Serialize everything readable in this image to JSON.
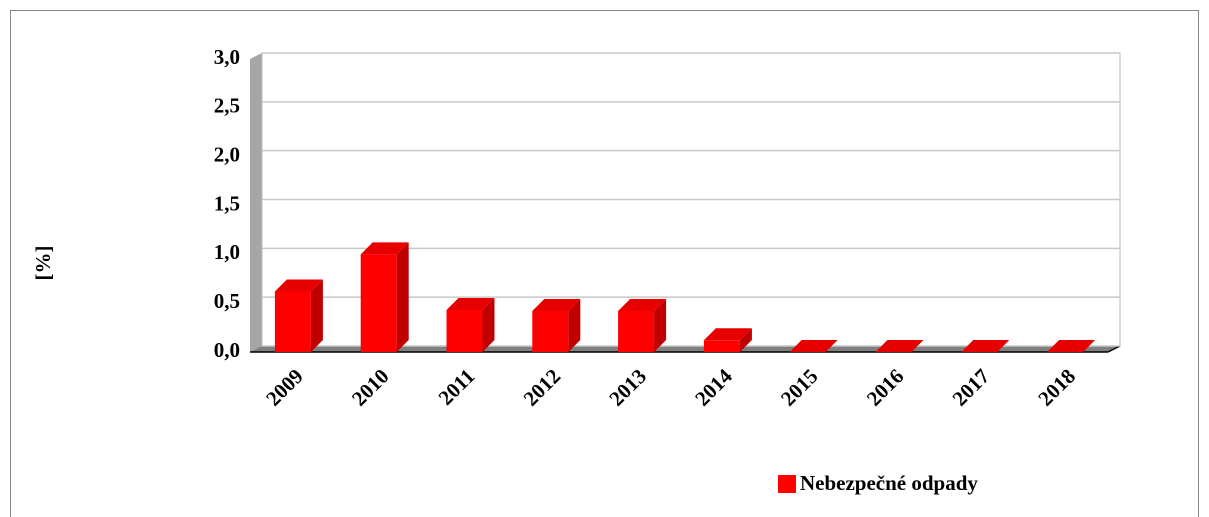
{
  "chart_data": {
    "type": "bar",
    "y_axis_label": "[%]",
    "categories": [
      "2009",
      "2010",
      "2011",
      "2012",
      "2013",
      "2014",
      "2015",
      "2016",
      "2017",
      "2018"
    ],
    "series": [
      {
        "name": "Nebezpečné odpady",
        "color": "#ff0000",
        "values": [
          0.62,
          1.0,
          0.43,
          0.42,
          0.42,
          0.12,
          0,
          0,
          0,
          0
        ]
      }
    ],
    "ylim": [
      0,
      3
    ],
    "yticks": [
      {
        "value": 0,
        "label": "0,0"
      },
      {
        "value": 0.5,
        "label": "0,5"
      },
      {
        "value": 1,
        "label": "1,0"
      },
      {
        "value": 1.5,
        "label": "1,5"
      },
      {
        "value": 2,
        "label": "2,0"
      },
      {
        "value": 2.5,
        "label": "2,5"
      },
      {
        "value": 3,
        "label": "3,0"
      }
    ],
    "grid": true,
    "legend": "bottom"
  }
}
